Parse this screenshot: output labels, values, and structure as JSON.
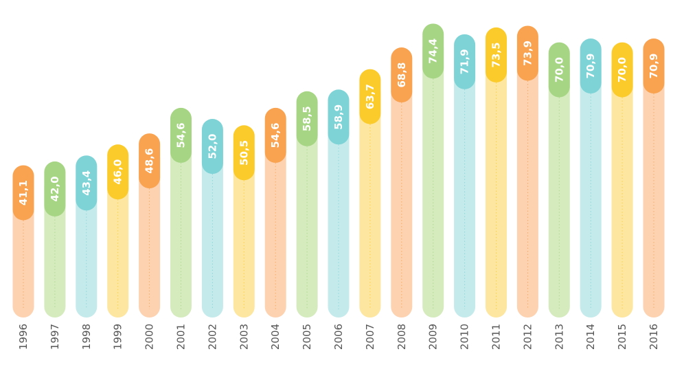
{
  "chart_data": {
    "type": "bar",
    "categories": [
      "1996",
      "1997",
      "1998",
      "1999",
      "2000",
      "2001",
      "2002",
      "2003",
      "2004",
      "2005",
      "2006",
      "2007",
      "2008",
      "2009",
      "2010",
      "2011",
      "2012",
      "2013",
      "2014",
      "2015",
      "2016"
    ],
    "values": [
      41.1,
      42.0,
      43.4,
      46.0,
      48.6,
      54.6,
      52.0,
      50.5,
      54.6,
      58.5,
      58.9,
      63.7,
      68.8,
      74.4,
      71.9,
      73.5,
      73.9,
      70.0,
      70.9,
      70.0,
      70.9
    ],
    "value_labels": [
      "41,1",
      "42,0",
      "43,4",
      "46,0",
      "48,6",
      "54,6",
      "52,0",
      "50,5",
      "54,6",
      "58,5",
      "58,9",
      "63,7",
      "68,8",
      "74,4",
      "71,9",
      "73,5",
      "73,9",
      "70,0",
      "70,9",
      "70,0",
      "70,9"
    ],
    "color_cycle": [
      "orange",
      "green",
      "teal",
      "yellow"
    ],
    "colors": {
      "orange": {
        "bar": "#fdd2b1",
        "label": "#f9a24f"
      },
      "green": {
        "bar": "#d5ebbe",
        "label": "#a6d584"
      },
      "teal": {
        "bar": "#c5eaeb",
        "label": "#7dd3d6"
      },
      "yellow": {
        "bar": "#fde6a0",
        "label": "#fbcb2c"
      }
    },
    "color_sequence": [
      "orange",
      "green",
      "teal",
      "yellow",
      "orange",
      "green",
      "teal",
      "yellow",
      "orange",
      "green",
      "teal",
      "yellow",
      "orange",
      "green",
      "teal",
      "yellow",
      "orange",
      "green",
      "teal",
      "yellow",
      "orange"
    ],
    "ylim": [
      0,
      80
    ],
    "grid": false,
    "legend": "none",
    "title": "",
    "xlabel": "",
    "ylabel": ""
  }
}
